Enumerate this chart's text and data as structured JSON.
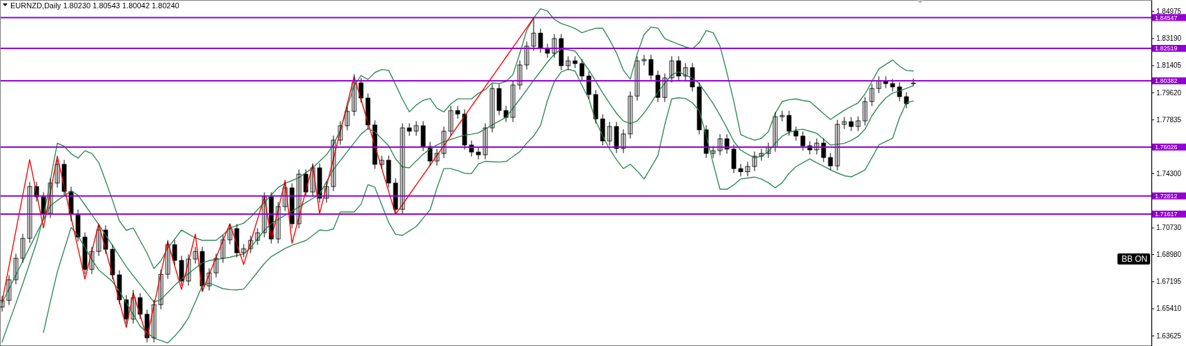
{
  "chart_data": {
    "type": "candlestick",
    "title": "EURNZD,Daily  1.80230 1.80543 1.80042 1.80240",
    "categories": [
      null,
      null,
      null,
      null,
      null,
      null,
      null,
      null,
      null,
      null,
      null,
      null,
      null,
      null,
      null,
      null,
      null,
      null,
      null,
      null,
      null,
      null,
      null,
      null,
      null,
      null,
      null,
      null,
      null,
      null,
      null,
      null,
      null,
      null,
      null,
      null,
      null,
      null,
      null,
      null,
      null,
      null,
      null,
      null,
      null,
      null,
      null,
      null,
      null,
      null,
      null,
      null,
      null,
      null,
      null,
      null,
      null,
      null,
      null,
      null,
      null,
      null,
      null,
      null,
      null,
      null,
      null,
      null,
      null,
      null,
      null,
      null,
      null,
      null,
      null,
      null,
      null,
      null,
      null,
      null,
      null,
      null,
      null,
      null,
      null,
      null,
      null,
      null,
      null,
      null,
      null,
      null,
      null,
      null,
      null,
      null,
      null,
      null,
      null,
      null,
      null,
      null,
      null,
      null,
      null,
      null,
      null,
      null,
      null,
      null,
      null,
      null,
      null,
      null,
      null,
      null,
      null,
      null,
      null,
      null,
      null,
      null,
      null,
      null,
      null,
      null,
      null,
      null,
      null,
      null,
      null,
      null,
      null
    ],
    "ohlc": [
      [
        1.655,
        1.6624,
        1.652,
        1.6594
      ],
      [
        1.6594,
        1.676,
        1.6564,
        1.673
      ],
      [
        1.673,
        1.6901,
        1.67,
        1.6871
      ],
      [
        1.6871,
        1.7032,
        1.6841,
        1.7002
      ],
      [
        1.7002,
        1.7373,
        1.6972,
        1.7343
      ],
      [
        1.7343,
        1.7373,
        1.7245,
        1.7275
      ],
      [
        1.7275,
        1.7305,
        1.7136,
        1.7166
      ],
      [
        1.7166,
        1.7396,
        1.7136,
        1.7366
      ],
      [
        1.7366,
        1.7519,
        1.7336,
        1.7489
      ],
      [
        1.7489,
        1.7519,
        1.7281,
        1.7311
      ],
      [
        1.7311,
        1.7341,
        1.7115,
        1.7161
      ],
      [
        1.7161,
        1.7191,
        1.6981,
        1.7011
      ],
      [
        1.7011,
        1.7041,
        1.6768,
        1.6798
      ],
      [
        1.6798,
        1.6946,
        1.6768,
        1.6916
      ],
      [
        1.6916,
        1.7087,
        1.6886,
        1.7057
      ],
      [
        1.7057,
        1.7087,
        1.69,
        1.693
      ],
      [
        1.693,
        1.696,
        1.6732,
        1.6762
      ],
      [
        1.6762,
        1.6792,
        1.6568,
        1.6598
      ],
      [
        1.6598,
        1.6628,
        1.6441,
        1.6471
      ],
      [
        1.6471,
        1.6662,
        1.6441,
        1.6612
      ],
      [
        1.6612,
        1.6642,
        1.6473,
        1.6503
      ],
      [
        1.6503,
        1.6533,
        1.6318,
        1.6348
      ],
      [
        1.6348,
        1.6596,
        1.6318,
        1.6566
      ],
      [
        1.6566,
        1.6796,
        1.6536,
        1.6766
      ],
      [
        1.6766,
        1.6991,
        1.6736,
        1.6961
      ],
      [
        1.6961,
        1.6991,
        1.6827,
        1.6857
      ],
      [
        1.6857,
        1.6887,
        1.6691,
        1.6721
      ],
      [
        1.6721,
        1.6896,
        1.6691,
        1.6866
      ],
      [
        1.6866,
        1.6946,
        1.6836,
        1.6916
      ],
      [
        1.6916,
        1.6946,
        1.6659,
        1.6689
      ],
      [
        1.6689,
        1.6805,
        1.6659,
        1.6775
      ],
      [
        1.6775,
        1.6901,
        1.6745,
        1.6871
      ],
      [
        1.6871,
        1.7023,
        1.6841,
        1.6993
      ],
      [
        1.6993,
        1.7096,
        1.6963,
        1.7066
      ],
      [
        1.7066,
        1.7096,
        1.6877,
        1.6907
      ],
      [
        1.6907,
        1.6964,
        1.6877,
        1.6934
      ],
      [
        1.6934,
        1.7019,
        1.6904,
        1.6989
      ],
      [
        1.6989,
        1.7069,
        1.6959,
        1.7039
      ],
      [
        1.7039,
        1.7305,
        1.7009,
        1.7275
      ],
      [
        1.7275,
        1.7305,
        1.6968,
        1.6998
      ],
      [
        1.6998,
        1.7241,
        1.6968,
        1.7211
      ],
      [
        1.7211,
        1.7364,
        1.7181,
        1.7334
      ],
      [
        1.7334,
        1.7364,
        1.7068,
        1.7098
      ],
      [
        1.7098,
        1.7455,
        1.7068,
        1.7425
      ],
      [
        1.7425,
        1.7455,
        1.7277,
        1.7307
      ],
      [
        1.7307,
        1.7496,
        1.7277,
        1.7466
      ],
      [
        1.7466,
        1.7496,
        1.7236,
        1.7266
      ],
      [
        1.7266,
        1.7373,
        1.7236,
        1.7343
      ],
      [
        1.7343,
        1.7678,
        1.7313,
        1.7648
      ],
      [
        1.7648,
        1.7773,
        1.7618,
        1.7743
      ],
      [
        1.7743,
        1.7868,
        1.7713,
        1.7838
      ],
      [
        1.7838,
        1.8082,
        1.7808,
        1.8025
      ],
      [
        1.8025,
        1.8055,
        1.7895,
        1.7925
      ],
      [
        1.7925,
        1.7955,
        1.7718,
        1.7748
      ],
      [
        1.7748,
        1.7778,
        1.7459,
        1.7489
      ],
      [
        1.7489,
        1.7546,
        1.7459,
        1.7516
      ],
      [
        1.7516,
        1.7546,
        1.7336,
        1.7366
      ],
      [
        1.7366,
        1.7396,
        1.7163,
        1.7193
      ],
      [
        1.7193,
        1.7759,
        1.7163,
        1.7729
      ],
      [
        1.7729,
        1.7759,
        1.7677,
        1.7707
      ],
      [
        1.7707,
        1.7773,
        1.7677,
        1.7743
      ],
      [
        1.7743,
        1.7773,
        1.7577,
        1.7607
      ],
      [
        1.7607,
        1.7637,
        1.7481,
        1.7511
      ],
      [
        1.7511,
        1.7591,
        1.7481,
        1.7561
      ],
      [
        1.7561,
        1.7737,
        1.7531,
        1.7707
      ],
      [
        1.7707,
        1.7873,
        1.7677,
        1.7843
      ],
      [
        1.7843,
        1.7873,
        1.779,
        1.782
      ],
      [
        1.782,
        1.785,
        1.7586,
        1.7616
      ],
      [
        1.7616,
        1.7646,
        1.754,
        1.757
      ],
      [
        1.757,
        1.76,
        1.7522,
        1.7552
      ],
      [
        1.7552,
        1.7759,
        1.7522,
        1.7729
      ],
      [
        1.7729,
        1.8018,
        1.7699,
        1.7988
      ],
      [
        1.7988,
        1.8018,
        1.7813,
        1.7843
      ],
      [
        1.7843,
        1.7873,
        1.7768,
        1.7798
      ],
      [
        1.7798,
        1.8041,
        1.7768,
        1.8011
      ],
      [
        1.8011,
        1.8173,
        1.7981,
        1.8143
      ],
      [
        1.8143,
        1.8296,
        1.8113,
        1.8266
      ],
      [
        1.8266,
        1.845,
        1.8236,
        1.8352
      ],
      [
        1.8352,
        1.8382,
        1.8222,
        1.8252
      ],
      [
        1.8252,
        1.8282,
        1.819,
        1.822
      ],
      [
        1.822,
        1.8346,
        1.819,
        1.8316
      ],
      [
        1.8316,
        1.8346,
        1.8108,
        1.8138
      ],
      [
        1.8138,
        1.82,
        1.8108,
        1.817
      ],
      [
        1.817,
        1.82,
        1.8122,
        1.8152
      ],
      [
        1.8152,
        1.8182,
        1.804,
        1.807
      ],
      [
        1.807,
        1.81,
        1.7918,
        1.7948
      ],
      [
        1.7948,
        1.7978,
        1.7758,
        1.7788
      ],
      [
        1.7788,
        1.7818,
        1.7613,
        1.7643
      ],
      [
        1.7643,
        1.7768,
        1.7613,
        1.7738
      ],
      [
        1.7738,
        1.7768,
        1.7563,
        1.7593
      ],
      [
        1.7593,
        1.7719,
        1.7563,
        1.7689
      ],
      [
        1.7689,
        1.7968,
        1.7659,
        1.7938
      ],
      [
        1.7938,
        1.82,
        1.7908,
        1.817
      ],
      [
        1.817,
        1.8209,
        1.814,
        1.8179
      ],
      [
        1.8179,
        1.8209,
        1.8045,
        1.8075
      ],
      [
        1.8075,
        1.8105,
        1.7899,
        1.7929
      ],
      [
        1.7929,
        1.8087,
        1.7899,
        1.8057
      ],
      [
        1.8057,
        1.82,
        1.8027,
        1.817
      ],
      [
        1.817,
        1.82,
        1.804,
        1.807
      ],
      [
        1.807,
        1.8155,
        1.804,
        1.8125
      ],
      [
        1.8125,
        1.8155,
        1.7968,
        1.7998
      ],
      [
        1.7998,
        1.8028,
        1.7686,
        1.7716
      ],
      [
        1.7716,
        1.7746,
        1.7531,
        1.7561
      ],
      [
        1.7561,
        1.7609,
        1.7531,
        1.7579
      ],
      [
        1.7579,
        1.7687,
        1.7549,
        1.7657
      ],
      [
        1.7657,
        1.7687,
        1.7559,
        1.7589
      ],
      [
        1.7589,
        1.7619,
        1.7431,
        1.7461
      ],
      [
        1.7461,
        1.7491,
        1.741,
        1.744
      ],
      [
        1.744,
        1.7505,
        1.741,
        1.7475
      ],
      [
        1.7475,
        1.7573,
        1.7445,
        1.7543
      ],
      [
        1.7543,
        1.7591,
        1.7513,
        1.7561
      ],
      [
        1.7561,
        1.7632,
        1.7531,
        1.7602
      ],
      [
        1.7602,
        1.7832,
        1.7572,
        1.7802
      ],
      [
        1.7802,
        1.7841,
        1.7772,
        1.7811
      ],
      [
        1.7811,
        1.7841,
        1.7677,
        1.7707
      ],
      [
        1.7707,
        1.7737,
        1.7645,
        1.7675
      ],
      [
        1.7675,
        1.7705,
        1.7581,
        1.7611
      ],
      [
        1.7611,
        1.7641,
        1.7554,
        1.7584
      ],
      [
        1.7584,
        1.7659,
        1.7554,
        1.7629
      ],
      [
        1.7629,
        1.7659,
        1.7504,
        1.7534
      ],
      [
        1.7534,
        1.7564,
        1.7449,
        1.7479
      ],
      [
        1.7479,
        1.7782,
        1.7449,
        1.7752
      ],
      [
        1.7752,
        1.78,
        1.7722,
        1.777
      ],
      [
        1.777,
        1.78,
        1.7708,
        1.7738
      ],
      [
        1.7738,
        1.7805,
        1.7708,
        1.7775
      ],
      [
        1.7775,
        1.7932,
        1.7745,
        1.7902
      ],
      [
        1.7902,
        1.8018,
        1.7872,
        1.7988
      ],
      [
        1.7988,
        1.8068,
        1.7958,
        1.8038
      ],
      [
        1.8038,
        1.8068,
        1.799,
        1.802
      ],
      [
        1.802,
        1.805,
        1.7968,
        1.7998
      ],
      [
        1.7998,
        1.8028,
        1.7904,
        1.7934
      ],
      [
        1.7934,
        1.7964,
        1.7858,
        1.7888
      ],
      [
        1.8023,
        1.80543,
        1.80042,
        1.8024
      ]
    ],
    "series": [
      {
        "type": "line",
        "color": "#2e8b57",
        "values": [
          1.632,
          1.6449,
          1.6574,
          1.6703,
          1.6839,
          1.6975,
          1.7143,
          1.7385,
          1.7628,
          1.7608,
          1.7559,
          1.753,
          1.7578,
          1.7561,
          1.7501,
          1.738,
          1.7252,
          1.7116,
          1.7055,
          1.707,
          1.6988,
          1.6905,
          1.6803,
          1.6854,
          1.6938,
          1.6997,
          1.7057,
          1.7031,
          1.7005,
          1.6989,
          1.6989,
          1.6989,
          1.7025,
          1.707,
          1.7086,
          1.7102,
          1.7141,
          1.719,
          1.7239,
          1.7288,
          1.7337,
          1.7364,
          1.7382,
          1.7402,
          1.7434,
          1.7466,
          1.7509,
          1.7552,
          1.762,
          1.7713,
          1.7867,
          1.8007,
          1.8073,
          1.8047,
          1.8093,
          1.8113,
          1.8107,
          1.8013,
          1.7917,
          1.7834,
          1.7879,
          1.791,
          1.7922,
          1.7857,
          1.7834,
          1.7886,
          1.792,
          1.792,
          1.792,
          1.7956,
          1.7981,
          1.8025,
          1.8021,
          1.8034,
          1.8079,
          1.8219,
          1.837,
          1.8451,
          1.8513,
          1.8497,
          1.8442,
          1.8415,
          1.84,
          1.8382,
          1.8355,
          1.8371,
          1.8384,
          1.8384,
          1.8309,
          1.8222,
          1.8108,
          1.8049,
          1.8216,
          1.8343,
          1.8392,
          1.8385,
          1.8316,
          1.8297,
          1.8279,
          1.8261,
          1.8249,
          1.829,
          1.8369,
          1.8355,
          1.8266,
          1.8092,
          1.7903,
          1.7685,
          1.7664,
          1.7648,
          1.766,
          1.7703,
          1.7824,
          1.7902,
          1.7914,
          1.7919,
          1.7909,
          1.7902,
          1.7863,
          1.7823,
          1.7784,
          1.7814,
          1.7845,
          1.787,
          1.7893,
          1.7951,
          1.8034,
          1.8116,
          1.8146,
          1.8175,
          1.8135,
          1.8106,
          1.8103
        ]
      },
      {
        "type": "line",
        "color": "#2e8b57",
        "values": [
          1.6579,
          1.667,
          1.6761,
          1.6853,
          1.6944,
          1.7035,
          1.7125,
          1.7216,
          1.7252,
          1.7283,
          1.7313,
          1.7286,
          1.7222,
          1.7158,
          1.7093,
          1.7024,
          1.6955,
          1.6885,
          1.6816,
          1.6756,
          1.6699,
          1.6641,
          1.6583,
          1.6599,
          1.6646,
          1.6693,
          1.6735,
          1.677,
          1.6806,
          1.6841,
          1.6856,
          1.6863,
          1.6869,
          1.6878,
          1.6889,
          1.6899,
          1.6942,
          1.6998,
          1.7055,
          1.71,
          1.7127,
          1.7154,
          1.7181,
          1.7209,
          1.7237,
          1.7265,
          1.7293,
          1.7376,
          1.7455,
          1.7513,
          1.7572,
          1.763,
          1.7688,
          1.7724,
          1.7702,
          1.7657,
          1.7611,
          1.7525,
          1.7472,
          1.7466,
          1.7511,
          1.7556,
          1.759,
          1.7617,
          1.7638,
          1.7653,
          1.7668,
          1.7681,
          1.7687,
          1.7696,
          1.7722,
          1.7748,
          1.7773,
          1.7798,
          1.7858,
          1.7917,
          1.7979,
          1.8041,
          1.8101,
          1.8161,
          1.8213,
          1.8248,
          1.8243,
          1.8234,
          1.8172,
          1.8109,
          1.8036,
          1.796,
          1.789,
          1.7825,
          1.7774,
          1.7757,
          1.7774,
          1.7827,
          1.7891,
          1.7964,
          1.8022,
          1.8078,
          1.8098,
          1.8075,
          1.8056,
          1.802,
          1.7955,
          1.7888,
          1.7811,
          1.7728,
          1.764,
          1.7582,
          1.7555,
          1.7532,
          1.7542,
          1.7572,
          1.7628,
          1.7674,
          1.7698,
          1.7714,
          1.772,
          1.7707,
          1.7693,
          1.7655,
          1.7616,
          1.7621,
          1.7627,
          1.7646,
          1.7673,
          1.772,
          1.7808,
          1.7874,
          1.7926,
          1.7957,
          1.7973,
          1.7989,
          1.8006
        ]
      },
      {
        "type": "line",
        "color": "#2e8b57",
        "values": [
          null,
          null,
          null,
          null,
          null,
          null,
          1.6383,
          1.6588,
          1.6781,
          1.6928,
          1.7074,
          1.7019,
          1.6942,
          1.6864,
          1.6794,
          1.6756,
          1.6717,
          1.6655,
          1.6578,
          1.6501,
          1.6424,
          1.6382,
          1.6346,
          1.633,
          1.6314,
          1.6359,
          1.6411,
          1.648,
          1.6585,
          1.669,
          1.6708,
          1.669,
          1.6671,
          1.6665,
          1.6663,
          1.6668,
          1.6724,
          1.678,
          1.6837,
          1.6882,
          1.6909,
          1.6936,
          1.6957,
          1.6973,
          1.6988,
          1.7021,
          1.7057,
          1.7052,
          1.7064,
          1.7175,
          1.7175,
          1.7175,
          1.7227,
          1.7355,
          1.7338,
          1.7222,
          1.7107,
          1.7028,
          1.7022,
          1.7051,
          1.708,
          1.7135,
          1.719,
          1.7334,
          1.7461,
          1.7461,
          1.7447,
          1.743,
          1.7428,
          1.7492,
          1.7509,
          1.7506,
          1.7504,
          1.7507,
          1.754,
          1.7572,
          1.7629,
          1.7675,
          1.7745,
          1.7909,
          1.8034,
          1.8097,
          1.8115,
          1.8102,
          1.8008,
          1.7919,
          1.7773,
          1.7677,
          1.759,
          1.752,
          1.7461,
          1.749,
          1.7446,
          1.7393,
          1.7469,
          1.7546,
          1.775,
          1.7919,
          1.7927,
          1.7922,
          1.7894,
          1.7841,
          1.7679,
          1.7496,
          1.7325,
          1.7325,
          1.7354,
          1.7393,
          1.7399,
          1.7405,
          1.7392,
          1.7368,
          1.7335,
          1.7368,
          1.743,
          1.7474,
          1.75,
          1.7525,
          1.75,
          1.7477,
          1.7453,
          1.7432,
          1.7414,
          1.7407,
          1.7428,
          1.7452,
          1.7532,
          1.7616,
          1.7639,
          1.7661,
          1.7795,
          1.7895,
          1.7906
        ]
      },
      {
        "type": "line",
        "color": "#ff0000",
        "values": [
          1.6584,
          1.6818,
          1.7052,
          1.7286,
          1.752,
          1.7295,
          1.707,
          1.7307,
          1.7543,
          1.7341,
          1.7139,
          1.6936,
          1.6734,
          1.6916,
          1.7098,
          1.6928,
          1.6757,
          1.6587,
          1.6416,
          1.6643,
          1.6496,
          1.6348,
          1.6559,
          1.6769,
          1.698,
          1.6823,
          1.6666,
          1.6848,
          1.703,
          1.6652,
          1.6764,
          1.6875,
          1.6987,
          1.7098,
          1.6964,
          1.683,
          1.6978,
          1.7127,
          1.7275,
          1.6998,
          1.7191,
          1.7384,
          1.697,
          1.7141,
          1.7313,
          1.7484,
          1.7166,
          1.7346,
          1.7526,
          1.7706,
          1.7886,
          1.8066,
          1.7915,
          1.7764,
          1.7613,
          1.7462,
          1.7311,
          1.716,
          1.7225,
          1.7289,
          1.7354,
          1.7418,
          1.7483,
          1.7548,
          1.7612,
          1.7677,
          1.7742,
          1.7806,
          1.7871,
          1.7935,
          1.8,
          1.8065,
          1.8129,
          1.8194,
          1.8258,
          1.8323,
          1.8388,
          1.8452,
          null,
          null,
          null,
          null,
          null,
          null,
          null,
          null,
          null,
          null,
          null,
          null,
          null,
          null,
          null,
          null,
          null,
          null,
          null,
          null,
          null,
          null,
          null,
          null,
          null,
          null,
          null,
          null,
          null,
          null,
          null,
          null,
          null,
          null,
          null,
          null,
          null,
          null,
          null,
          null,
          null,
          null,
          null,
          null,
          null,
          null,
          null,
          null,
          null,
          null,
          null,
          null,
          null,
          null,
          null
        ]
      }
    ],
    "ylim": [
      1.6294,
      1.857
    ],
    "yticks": [
      1.84975,
      {
        "value": 1.8319,
        "label": "1.83190"
      },
      1.81405,
      {
        "value": 1.7962,
        "label": "1.79620"
      },
      1.77835,
      {
        "value": 1.743,
        "label": "1.74300"
      },
      {
        "value": 1.7073,
        "label": "1.70730"
      },
      {
        "value": 1.6898,
        "label": "1.68980"
      },
      1.67195,
      {
        "value": 1.6541,
        "label": "1.65410"
      },
      1.63625
    ],
    "tick_labels": "y",
    "ref_lines": [
      {
        "axis": "y",
        "value": 1.84547,
        "label": "1.84547",
        "color": "#9400d3"
      },
      {
        "axis": "y",
        "value": 1.82519,
        "label": "1.82519",
        "color": "#9400d3"
      },
      {
        "axis": "y",
        "value": 1.80382,
        "label": "1.80382",
        "color": "#9400d3"
      },
      {
        "axis": "y",
        "value": 1.76026,
        "label": "1.76026",
        "color": "#9400d3"
      },
      {
        "axis": "y",
        "value": 1.72812,
        "label": "1.72812",
        "color": "#9400d3"
      },
      {
        "axis": "y",
        "value": 1.71617,
        "label": "1.71617",
        "color": "#9400d3"
      }
    ],
    "annotations": [
      "BB ON"
    ]
  }
}
